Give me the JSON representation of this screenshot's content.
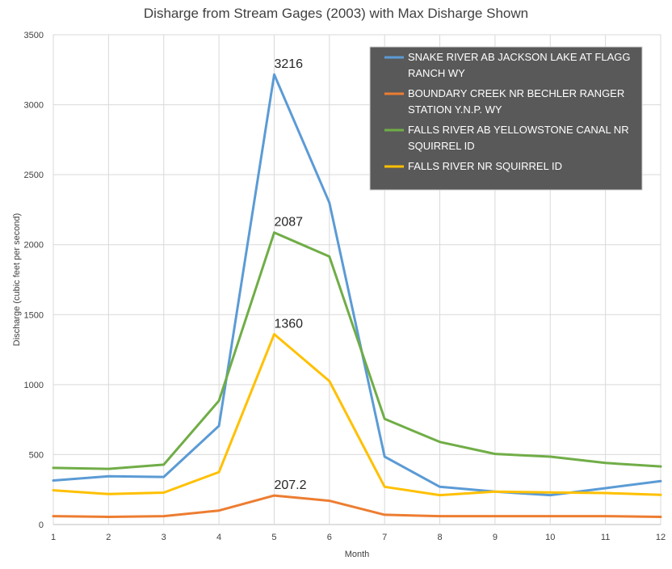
{
  "chart_data": {
    "type": "line",
    "title": "Disharge from Stream Gages (2003) with Max Disharge Shown",
    "xlabel": "Month",
    "ylabel": "Discharge (cubic feet per second)",
    "x": [
      1,
      2,
      3,
      4,
      5,
      6,
      7,
      8,
      9,
      10,
      11,
      12
    ],
    "xlim": [
      1,
      12
    ],
    "ylim": [
      0,
      3500
    ],
    "y_ticks": [
      0,
      500,
      1000,
      1500,
      2000,
      2500,
      3000,
      3500
    ],
    "grid": true,
    "legend_position": "top-right",
    "series": [
      {
        "name": "SNAKE RIVER AB JACKSON LAKE AT FLAGG RANCH WY",
        "legend_lines": [
          "SNAKE RIVER AB JACKSON LAKE AT FLAGG",
          "RANCH WY"
        ],
        "color": "#5b9bd5",
        "values": [
          315,
          345,
          340,
          705,
          3216,
          2300,
          485,
          270,
          235,
          210,
          260,
          310
        ]
      },
      {
        "name": "BOUNDARY CREEK NR BECHLER RANGER STATION Y.N.P. WY",
        "legend_lines": [
          "BOUNDARY CREEK NR BECHLER RANGER",
          "STATION Y.N.P. WY"
        ],
        "color": "#ed7d31",
        "values": [
          60,
          55,
          60,
          100,
          207.2,
          170,
          70,
          60,
          60,
          60,
          60,
          55
        ]
      },
      {
        "name": "FALLS RIVER AB YELLOWSTONE CANAL NR SQUIRREL ID",
        "legend_lines": [
          "FALLS RIVER AB YELLOWSTONE CANAL NR",
          "SQUIRREL ID"
        ],
        "color": "#70ad47",
        "values": [
          405,
          398,
          428,
          885,
          2087,
          1915,
          755,
          590,
          505,
          485,
          440,
          415
        ]
      },
      {
        "name": "FALLS RIVER NR SQUIRREL ID",
        "legend_lines": [
          "FALLS RIVER NR SQUIRREL ID"
        ],
        "color": "#ffc000",
        "values": [
          245,
          218,
          228,
          375,
          1360,
          1025,
          270,
          210,
          235,
          230,
          225,
          212
        ]
      }
    ],
    "annotations": [
      {
        "text": "3216",
        "x": 5,
        "y": 3216
      },
      {
        "text": "2087",
        "x": 5,
        "y": 2087
      },
      {
        "text": "1360",
        "x": 5,
        "y": 1360
      },
      {
        "text": "207.2",
        "x": 5,
        "y": 207.2
      }
    ]
  }
}
